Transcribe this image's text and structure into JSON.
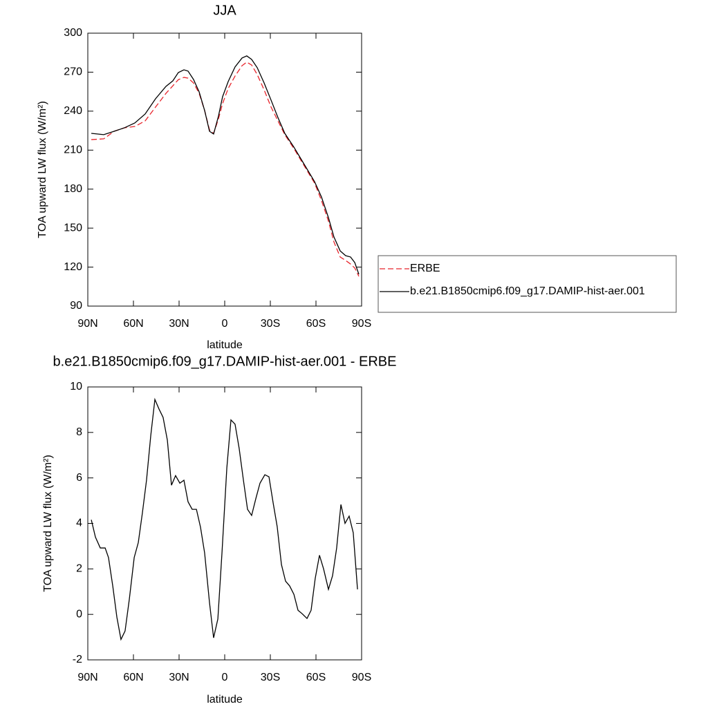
{
  "chart_data": [
    {
      "type": "line",
      "title": "JJA",
      "xlabel": "latitude",
      "ylabel": "TOA upward LW flux (W/m²)",
      "x": [
        87.7,
        79.5,
        72.7,
        65.9,
        59.1,
        52.3,
        45.5,
        38.6,
        34.1,
        30.5,
        26.8,
        24.1,
        20.5,
        16.8,
        13.2,
        10,
        7.3,
        4.1,
        1.4,
        -2.3,
        -6.8,
        -11.4,
        -14.5,
        -17.7,
        -21.4,
        -25.9,
        -30.5,
        -35,
        -39.5,
        -45.5,
        -52.3,
        -59.1,
        -63.6,
        -68.2,
        -71.8,
        -75.9,
        -79.5,
        -82.7,
        -85.5,
        -88.2
      ],
      "series": [
        {
          "name": "ERBE",
          "color": "#e8232a",
          "linestyle": "dashed",
          "values": [
            218.1,
            218.7,
            224.5,
            227.2,
            228.2,
            232.5,
            243.1,
            253.7,
            259.5,
            264.2,
            266.0,
            265.4,
            261.7,
            253.7,
            240.5,
            225.6,
            222.9,
            234.1,
            245.8,
            257.5,
            267.0,
            275.0,
            277.7,
            275.5,
            268.1,
            256.4,
            243.1,
            232.5,
            221.9,
            211.2,
            197.9,
            184.6,
            171.3,
            155.4,
            139.4,
            127.8,
            125.1,
            122.4,
            119.3,
            112.9
          ]
        },
        {
          "name": "b.e21.B1850cmip6.f09_g17.DAMIP-hist-aer.001",
          "color": "#000000",
          "linestyle": "solid",
          "values": [
            222.9,
            221.9,
            224.5,
            227.2,
            230.9,
            237.8,
            249.5,
            259.1,
            263.3,
            269.7,
            271.8,
            270.8,
            264.4,
            254.8,
            240.5,
            224.5,
            222.4,
            236.2,
            251.1,
            262.8,
            274.0,
            280.9,
            282.5,
            279.8,
            273.4,
            261.7,
            248.4,
            235.1,
            222.9,
            212.3,
            199.0,
            185.7,
            174.0,
            158.1,
            143.2,
            132.5,
            128.8,
            127.8,
            123.5,
            114.5
          ]
        }
      ],
      "xlim": [
        90,
        -90
      ],
      "xticks": [
        {
          "value": 90,
          "label": "90N"
        },
        {
          "value": 60,
          "label": "60N"
        },
        {
          "value": 30,
          "label": "30N"
        },
        0,
        {
          "value": -30,
          "label": "30S"
        },
        {
          "value": -60,
          "label": "60S"
        },
        {
          "value": -90,
          "label": "90S"
        }
      ],
      "ylim": [
        90,
        300
      ],
      "yticks": [
        90,
        120,
        150,
        180,
        210,
        240,
        270,
        300
      ],
      "legend": "right"
    },
    {
      "type": "line",
      "title": "b.e21.B1850cmip6.f09_g17.DAMIP-hist-aer.001 - ERBE",
      "xlabel": "latitude",
      "ylabel": "TOA upward LW flux (W/m²)",
      "x": [
        87.7,
        85,
        81.8,
        78.6,
        76.4,
        73.6,
        70.9,
        68.2,
        65.5,
        62.7,
        59.5,
        56.8,
        54.1,
        51.4,
        48.6,
        45.9,
        43.2,
        40.5,
        37.7,
        35,
        32.3,
        29.5,
        26.8,
        24.1,
        21.4,
        18.6,
        15.9,
        13.2,
        10,
        7.3,
        4.5,
        1.8,
        -1.4,
        -4.1,
        -6.8,
        -9.5,
        -12.3,
        -15,
        -17.7,
        -20.5,
        -23.2,
        -26.4,
        -29.1,
        -31.8,
        -34.5,
        -37.3,
        -40,
        -42.7,
        -45.5,
        -48.2,
        -50.9,
        -54.1,
        -56.8,
        -59.5,
        -62.3,
        -65,
        -68.2,
        -70.9,
        -73.6,
        -76.4,
        -79.1,
        -81.8,
        -84.5,
        -87.3
      ],
      "values": [
        4.16,
        3.4,
        2.92,
        2.92,
        2.5,
        1.25,
        -0.12,
        -1.1,
        -0.73,
        0.67,
        2.5,
        3.16,
        4.47,
        5.9,
        7.87,
        9.45,
        9.03,
        8.66,
        7.66,
        5.68,
        6.1,
        5.77,
        5.9,
        4.95,
        4.62,
        4.62,
        3.83,
        2.7,
        0.52,
        -1.03,
        -0.2,
        2.7,
        6.44,
        8.55,
        8.36,
        7.3,
        5.9,
        4.62,
        4.35,
        5.1,
        5.77,
        6.14,
        6.05,
        4.92,
        3.86,
        2.19,
        1.46,
        1.25,
        0.88,
        0.18,
        0.03,
        -0.18,
        0.18,
        1.58,
        2.6,
        2.0,
        1.1,
        1.7,
        2.92,
        4.83,
        4.0,
        4.32,
        3.59,
        1.1
      ],
      "color": "#000000",
      "xlim": [
        90,
        -90
      ],
      "xticks": [
        {
          "value": 90,
          "label": "90N"
        },
        {
          "value": 60,
          "label": "60N"
        },
        {
          "value": 30,
          "label": "30N"
        },
        0,
        {
          "value": -30,
          "label": "30S"
        },
        {
          "value": -60,
          "label": "60S"
        },
        {
          "value": -90,
          "label": "90S"
        }
      ],
      "ylim": [
        -2,
        10
      ],
      "yticks": [
        -2,
        0,
        2,
        4,
        6,
        8,
        10
      ]
    }
  ]
}
